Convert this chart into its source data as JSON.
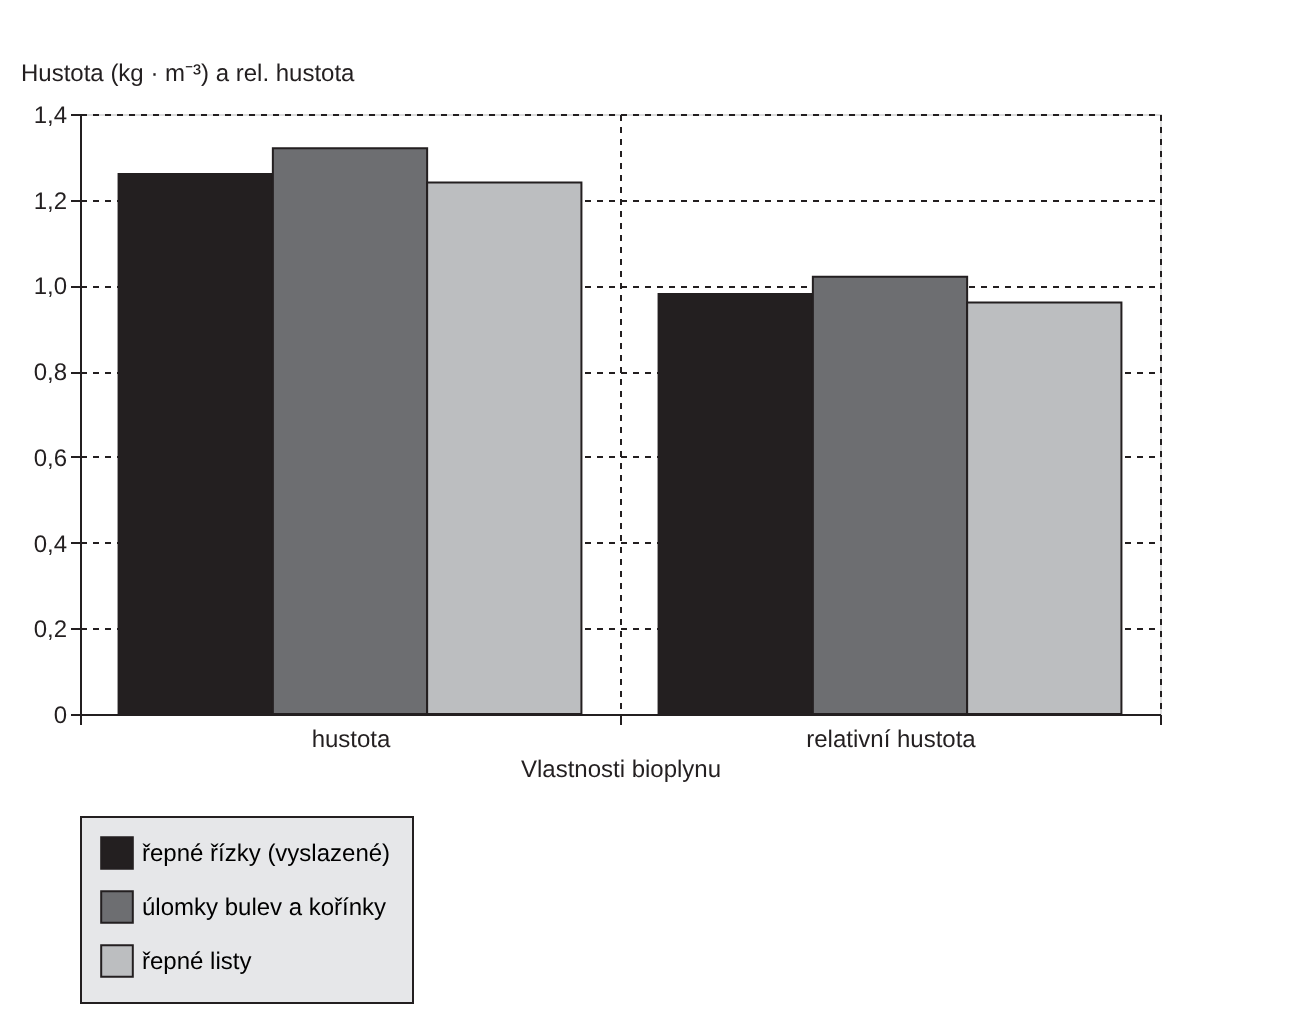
{
  "chart_data": {
    "type": "bar",
    "xlabel": "Vlastnosti bioplynu",
    "ylabel": "Hustota (kg · m⁻³) a rel. hustota",
    "categories": [
      "hustota",
      "relativní hustota"
    ],
    "series": [
      {
        "name": "řepné řízky (vyslazené)",
        "color": "#231f20",
        "values": [
          1.26,
          0.98
        ]
      },
      {
        "name": "úlomky bulev a kořínky",
        "color": "#6d6e71",
        "values": [
          1.32,
          1.02
        ]
      },
      {
        "name": "řepné listy",
        "color": "#bcbec0",
        "values": [
          1.24,
          0.96
        ]
      }
    ],
    "ylim": [
      0,
      1.4
    ],
    "yticks": [
      {
        "value": 0,
        "label": "0"
      },
      {
        "value": 0.2,
        "label": "0,2"
      },
      {
        "value": 0.4,
        "label": "0,4"
      },
      {
        "value": 0.6,
        "label": "0,6"
      },
      {
        "value": 0.8,
        "label": "0,8"
      },
      {
        "value": 1.0,
        "label": "1,0"
      },
      {
        "value": 1.2,
        "label": "1,2"
      },
      {
        "value": 1.4,
        "label": "1,4"
      }
    ],
    "grid": true,
    "legend": "bottom"
  }
}
